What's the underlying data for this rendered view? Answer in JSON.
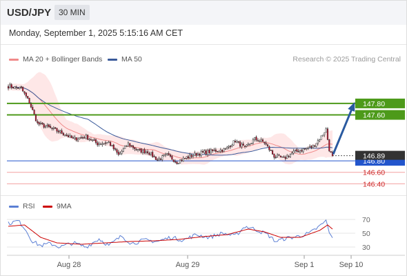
{
  "header": {
    "pair": "USD/JPY",
    "timeframe": "30 MIN"
  },
  "datetime": "Monday, September 1, 2025 5:15:16 AM CET",
  "legend": {
    "ma20": {
      "label": "MA 20 + Bollinger Bands",
      "color": "#f08a8a"
    },
    "ma50": {
      "label": "MA 50",
      "color": "#3a5a9a"
    }
  },
  "credit": "Research © 2025 Trading Central",
  "rsi_legend": {
    "rsi": {
      "label": "RSI",
      "color": "#5b7fd4"
    },
    "ma9": {
      "label": "9MA",
      "color": "#cc0000"
    }
  },
  "colors": {
    "bull": "#ffffff",
    "bear": "#c8102e",
    "wick": "#333333",
    "band_fill": "#fddada",
    "ma20": "#f08a8a",
    "ma50": "#3a5a9a",
    "resistance": "#4d9a1a",
    "pivot": "#2255cc",
    "support": "#f3a0a0",
    "arrow": "#2a5aa0",
    "current": "#333333"
  },
  "chart_data": [
    {
      "type": "candlestick",
      "title": "USD/JPY",
      "timeframe": "30 MIN",
      "ylim": [
        146.2,
        148.4
      ],
      "x_ticks": [
        "Aug 28",
        "Aug 29",
        "Sep 1",
        "Sep 10"
      ],
      "current_price": 146.89,
      "levels": [
        {
          "label": "147.80",
          "value": 147.8,
          "role": "resistance"
        },
        {
          "label": "147.60",
          "value": 147.6,
          "role": "resistance"
        },
        {
          "label": "146.80",
          "value": 146.8,
          "role": "pivot"
        },
        {
          "label": "146.60",
          "value": 146.6,
          "role": "support"
        },
        {
          "label": "146.40",
          "value": 146.4,
          "role": "support"
        }
      ],
      "annotation": "arrow up toward 147.80",
      "key_closes": [
        {
          "x": 0,
          "y": 148.1
        },
        {
          "x": 8,
          "y": 148.06
        },
        {
          "x": 13,
          "y": 147.82
        },
        {
          "x": 18,
          "y": 147.45
        },
        {
          "x": 25,
          "y": 147.38
        },
        {
          "x": 33,
          "y": 147.29
        },
        {
          "x": 40,
          "y": 147.18
        },
        {
          "x": 48,
          "y": 147.22
        },
        {
          "x": 55,
          "y": 147.1
        },
        {
          "x": 62,
          "y": 147.12
        },
        {
          "x": 68,
          "y": 146.9
        },
        {
          "x": 74,
          "y": 147.1
        },
        {
          "x": 80,
          "y": 146.98
        },
        {
          "x": 86,
          "y": 146.96
        },
        {
          "x": 92,
          "y": 146.82
        },
        {
          "x": 98,
          "y": 146.9
        },
        {
          "x": 104,
          "y": 146.78
        },
        {
          "x": 110,
          "y": 146.86
        },
        {
          "x": 116,
          "y": 146.92
        },
        {
          "x": 122,
          "y": 146.95
        },
        {
          "x": 128,
          "y": 146.98
        },
        {
          "x": 134,
          "y": 147.0
        },
        {
          "x": 140,
          "y": 147.15
        },
        {
          "x": 146,
          "y": 147.02
        },
        {
          "x": 152,
          "y": 147.18
        },
        {
          "x": 158,
          "y": 147.12
        },
        {
          "x": 164,
          "y": 146.88
        },
        {
          "x": 170,
          "y": 146.84
        },
        {
          "x": 176,
          "y": 146.95
        },
        {
          "x": 182,
          "y": 147.0
        },
        {
          "x": 188,
          "y": 147.05
        },
        {
          "x": 193,
          "y": 147.22
        },
        {
          "x": 196,
          "y": 147.35
        },
        {
          "x": 198,
          "y": 147.0
        },
        {
          "x": 200,
          "y": 146.86
        }
      ]
    },
    {
      "type": "line",
      "title": "RSI",
      "y_ticks": [
        "70",
        "50",
        "30"
      ],
      "ylim": [
        20,
        80
      ],
      "series": [
        {
          "name": "RSI",
          "key_points": [
            [
              0,
              64
            ],
            [
              6,
              68
            ],
            [
              10,
              58
            ],
            [
              15,
              38
            ],
            [
              20,
              32
            ],
            [
              26,
              35
            ],
            [
              32,
              30
            ],
            [
              40,
              36
            ],
            [
              48,
              30
            ],
            [
              56,
              42
            ],
            [
              62,
              32
            ],
            [
              70,
              46
            ],
            [
              76,
              35
            ],
            [
              84,
              40
            ],
            [
              92,
              38
            ],
            [
              100,
              44
            ],
            [
              108,
              40
            ],
            [
              116,
              48
            ],
            [
              124,
              44
            ],
            [
              132,
              50
            ],
            [
              140,
              46
            ],
            [
              146,
              60
            ],
            [
              152,
              56
            ],
            [
              160,
              48
            ],
            [
              165,
              38
            ],
            [
              170,
              42
            ],
            [
              178,
              45
            ],
            [
              186,
              50
            ],
            [
              192,
              60
            ],
            [
              196,
              68
            ],
            [
              199,
              45
            ],
            [
              200,
              42
            ]
          ]
        },
        {
          "name": "9MA",
          "key_points": [
            [
              0,
              60
            ],
            [
              10,
              62
            ],
            [
              20,
              44
            ],
            [
              30,
              36
            ],
            [
              45,
              34
            ],
            [
              60,
              36
            ],
            [
              75,
              38
            ],
            [
              90,
              39
            ],
            [
              105,
              41
            ],
            [
              120,
              45
            ],
            [
              135,
              48
            ],
            [
              148,
              56
            ],
            [
              158,
              52
            ],
            [
              168,
              44
            ],
            [
              180,
              44
            ],
            [
              192,
              54
            ],
            [
              197,
              62
            ],
            [
              200,
              56
            ]
          ]
        }
      ]
    }
  ]
}
